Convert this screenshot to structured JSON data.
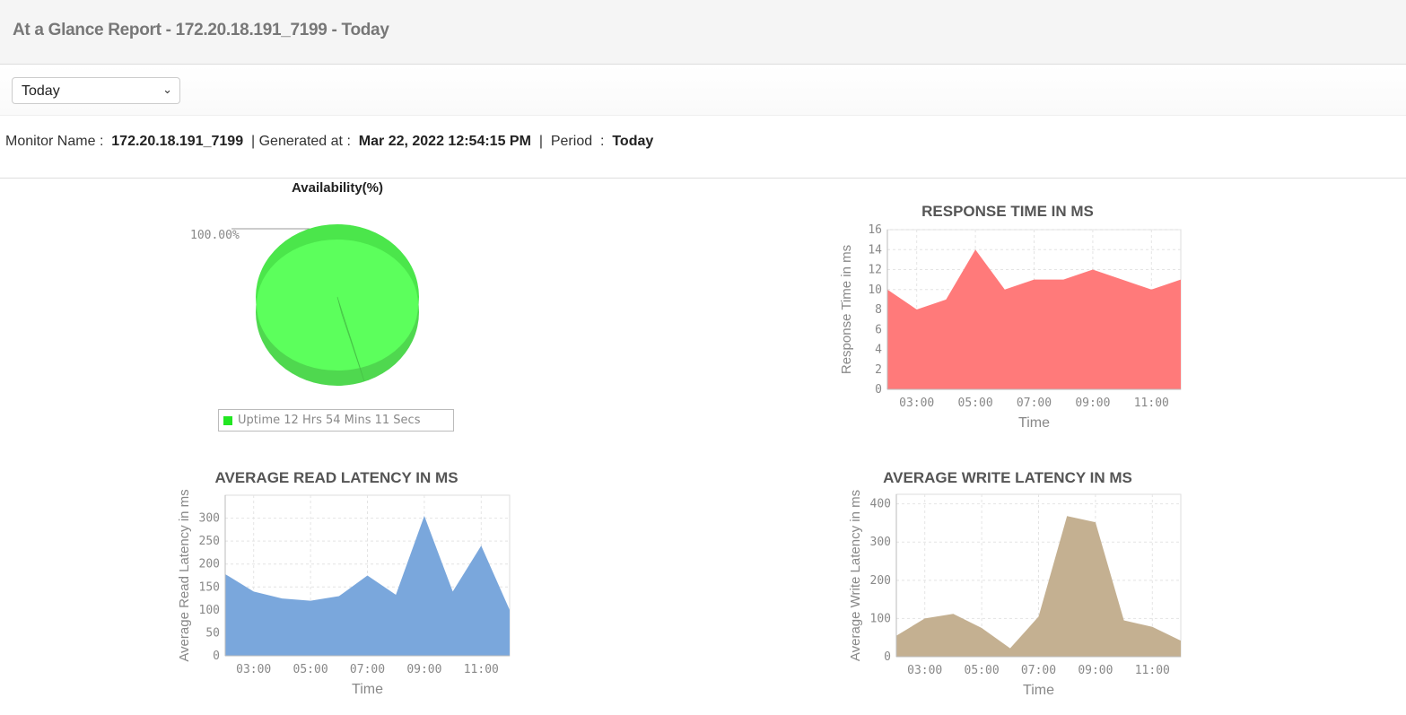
{
  "header": {
    "title": "At a Glance Report - 172.20.18.191_7199 - Today"
  },
  "period_select": {
    "value": "Today"
  },
  "info": {
    "monitor_label": "Monitor Name",
    "monitor_value": "172.20.18.191_7199",
    "generated_label": "Generated at",
    "generated_value": "Mar 22, 2022 12:54:15 PM",
    "period_label": "Period",
    "period_value": "Today",
    "separator": ":",
    "pipe": "|"
  },
  "availability": {
    "title": "Availability(%)",
    "slice_label": "100.00%",
    "legend": "Uptime 12 Hrs 54 Mins 11 Secs",
    "value": 100,
    "color": "#5cff5c"
  },
  "chart_data": [
    {
      "type": "area",
      "title": "RESPONSE TIME IN MS",
      "xlabel": "Time",
      "ylabel": "Response Time in ms",
      "x": [
        2,
        3,
        4,
        5,
        6,
        7,
        8,
        9,
        10,
        11,
        12
      ],
      "xticks": [
        "03:00",
        "05:00",
        "07:00",
        "09:00",
        "11:00"
      ],
      "xtick_values": [
        3,
        5,
        7,
        9,
        11
      ],
      "values": [
        10,
        8,
        9,
        14,
        10,
        11,
        11,
        12,
        11,
        10,
        11
      ],
      "ylim": [
        0,
        16
      ],
      "yticks": [
        0,
        2,
        4,
        6,
        8,
        10,
        12,
        14,
        16
      ],
      "color": "#ff7a7a",
      "grid": true
    },
    {
      "type": "area",
      "title": "AVERAGE READ LATENCY IN MS",
      "xlabel": "Time",
      "ylabel": "Average Read Latency in ms",
      "x": [
        2,
        3,
        4,
        5,
        6,
        7,
        8,
        9,
        10,
        11,
        12
      ],
      "xticks": [
        "03:00",
        "05:00",
        "07:00",
        "09:00",
        "11:00"
      ],
      "xtick_values": [
        3,
        5,
        7,
        9,
        11
      ],
      "values": [
        178,
        140,
        125,
        120,
        130,
        175,
        133,
        305,
        140,
        240,
        100
      ],
      "ylim": [
        0,
        350
      ],
      "yticks": [
        0,
        50,
        100,
        150,
        200,
        250,
        300
      ],
      "color": "#7aa7dc",
      "grid": true
    },
    {
      "type": "area",
      "title": "AVERAGE WRITE LATENCY IN MS",
      "xlabel": "Time",
      "ylabel": "Average Write Latency in ms",
      "x": [
        2,
        3,
        4,
        5,
        6,
        7,
        8,
        9,
        10,
        11,
        12
      ],
      "xticks": [
        "03:00",
        "05:00",
        "07:00",
        "09:00",
        "11:00"
      ],
      "xtick_values": [
        3,
        5,
        7,
        9,
        11
      ],
      "values": [
        55,
        100,
        112,
        75,
        22,
        105,
        368,
        352,
        95,
        78,
        42
      ],
      "ylim": [
        0,
        425
      ],
      "yticks": [
        0,
        100,
        200,
        300,
        400
      ],
      "color": "#c4b091",
      "grid": true
    }
  ]
}
